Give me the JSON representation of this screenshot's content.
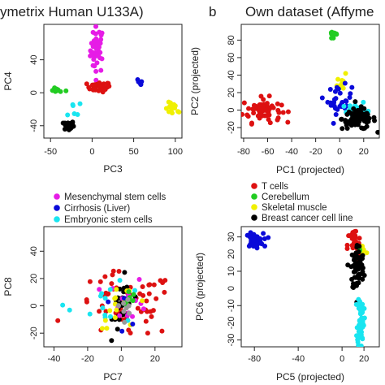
{
  "colors": {
    "red": "#dd1111",
    "magenta": "#e61ce6",
    "green": "#22cc22",
    "blue": "#0a0ad9",
    "cyan": "#19e5f0",
    "yellow": "#f0f000",
    "black": "#000000",
    "grey": "#999999"
  },
  "panel_headers": [
    "ymetrix Human U133A)",
    "b",
    "Own dataset (Affyme"
  ],
  "legends": {
    "left": [
      {
        "label": "Mesenchymal stem cells",
        "color": "#e61ce6"
      },
      {
        "label": "Cirrhosis (Liver)",
        "color": "#0a0ad9"
      },
      {
        "label": "Embryonic stem cells",
        "color": "#19e5f0"
      }
    ],
    "right": [
      {
        "label": "T cells",
        "color": "#dd1111"
      },
      {
        "label": "Cerebellum",
        "color": "#22cc22"
      },
      {
        "label": "Skeletal muscle",
        "color": "#f0f000"
      },
      {
        "label": "Breast cancer cell line",
        "color": "#000000"
      }
    ]
  },
  "chart_data": [
    {
      "type": "scatter",
      "xlabel": "PC3",
      "ylabel": "PC4",
      "xlim": [
        -58,
        108
      ],
      "ylim": [
        -55,
        83
      ],
      "xticks": [
        -50,
        0,
        50,
        100
      ],
      "yticks": [
        -40,
        0,
        40
      ],
      "clusters": [
        {
          "color": "magenta",
          "n": 42,
          "cx": 6,
          "cy": 52,
          "sx": 4,
          "sy": 14
        },
        {
          "color": "red",
          "n": 30,
          "cx": 8,
          "cy": 7,
          "sx": 7,
          "sy": 3
        },
        {
          "color": "green",
          "n": 12,
          "cx": -42,
          "cy": 3,
          "sx": 5,
          "sy": 1.2
        },
        {
          "color": "blue",
          "n": 6,
          "cx": 55,
          "cy": 11,
          "sx": 3,
          "sy": 3
        },
        {
          "color": "yellow",
          "n": 14,
          "cx": 98,
          "cy": -20,
          "sx": 5,
          "sy": 4
        },
        {
          "color": "cyan",
          "n": 6,
          "cx": -20,
          "cy": -18,
          "sx": 5,
          "sy": 6
        },
        {
          "color": "black",
          "n": 34,
          "cx": -28,
          "cy": -40,
          "sx": 3,
          "sy": 3
        }
      ]
    },
    {
      "type": "scatter",
      "xlabel": "PC1 (projected)",
      "ylabel": "PC2 (projected)",
      "xlim": [
        -82,
        33
      ],
      "ylim": [
        -32,
        98
      ],
      "xticks": [
        -80,
        -60,
        -40,
        -20,
        0,
        20
      ],
      "yticks": [
        -20,
        0,
        20,
        40,
        60,
        80
      ],
      "clusters": [
        {
          "color": "green",
          "n": 14,
          "cx": -5,
          "cy": 86,
          "sx": 2,
          "sy": 3
        },
        {
          "color": "yellow",
          "n": 12,
          "cx": 2,
          "cy": 33,
          "sx": 2,
          "sy": 6
        },
        {
          "color": "red",
          "n": 65,
          "cx": -65,
          "cy": 0,
          "sx": 8,
          "sy": 7
        },
        {
          "color": "blue",
          "n": 30,
          "cx": 0,
          "cy": 12,
          "sx": 5,
          "sy": 8
        },
        {
          "color": "cyan",
          "n": 30,
          "cx": 14,
          "cy": -2,
          "sx": 6,
          "sy": 5
        },
        {
          "color": "black",
          "n": 80,
          "cx": 16,
          "cy": -10,
          "sx": 7,
          "sy": 6
        }
      ]
    },
    {
      "type": "scatter",
      "xlabel": "PC7",
      "ylabel": "PC8",
      "xlim": [
        -46,
        36
      ],
      "ylim": [
        -30,
        58
      ],
      "xticks": [
        -40,
        -20,
        0,
        20
      ],
      "yticks": [
        -20,
        0,
        20,
        40
      ],
      "clusters": [
        {
          "color": "red",
          "n": 60,
          "cx": 2,
          "cy": 0,
          "sx": 15,
          "sy": 12
        },
        {
          "color": "black",
          "n": 30,
          "cx": 1,
          "cy": 0,
          "sx": 3,
          "sy": 10
        },
        {
          "color": "magenta",
          "n": 14,
          "cx": 4,
          "cy": 4,
          "sx": 6,
          "sy": 8
        },
        {
          "color": "cyan",
          "n": 14,
          "cx": -8,
          "cy": 2,
          "sx": 12,
          "sy": 7
        },
        {
          "color": "yellow",
          "n": 16,
          "cx": 2,
          "cy": 0,
          "sx": 8,
          "sy": 8
        },
        {
          "color": "green",
          "n": 8,
          "cx": 3,
          "cy": 6,
          "sx": 3,
          "sy": 4
        },
        {
          "color": "blue",
          "n": 4,
          "cx": 0,
          "cy": -4,
          "sx": 6,
          "sy": 6
        },
        {
          "color": "grey",
          "n": 8,
          "cx": 3,
          "cy": 0,
          "sx": 2,
          "sy": 3
        }
      ]
    },
    {
      "type": "scatter",
      "xlabel": "PC5 (projected)",
      "ylabel": "PC6 (projected)",
      "xlim": [
        -92,
        34
      ],
      "ylim": [
        -34,
        36
      ],
      "xticks": [
        -80,
        -40,
        0,
        20
      ],
      "yticks": [
        -30,
        -10,
        10,
        30
      ],
      "ytick_labels": [
        "-30",
        "-10",
        "10",
        "30"
      ],
      "extra_ytick_labels": [
        "20",
        "0",
        "-20"
      ],
      "clusters": [
        {
          "color": "blue",
          "n": 50,
          "cx": -80,
          "cy": 28,
          "sx": 4,
          "sy": 2
        },
        {
          "color": "red",
          "n": 30,
          "cx": 11,
          "cy": 25,
          "sx": 3,
          "sy": 5
        },
        {
          "color": "yellow",
          "n": 8,
          "cx": 19,
          "cy": 22,
          "sx": 2,
          "sy": 3
        },
        {
          "color": "green",
          "n": 4,
          "cx": 16,
          "cy": 22,
          "sx": 1,
          "sy": 2
        },
        {
          "color": "black",
          "n": 70,
          "cx": 14,
          "cy": 12,
          "sx": 3,
          "sy": 7
        },
        {
          "color": "cyan",
          "n": 60,
          "cx": 17,
          "cy": -18,
          "sx": 1.5,
          "sy": 8
        }
      ]
    }
  ]
}
